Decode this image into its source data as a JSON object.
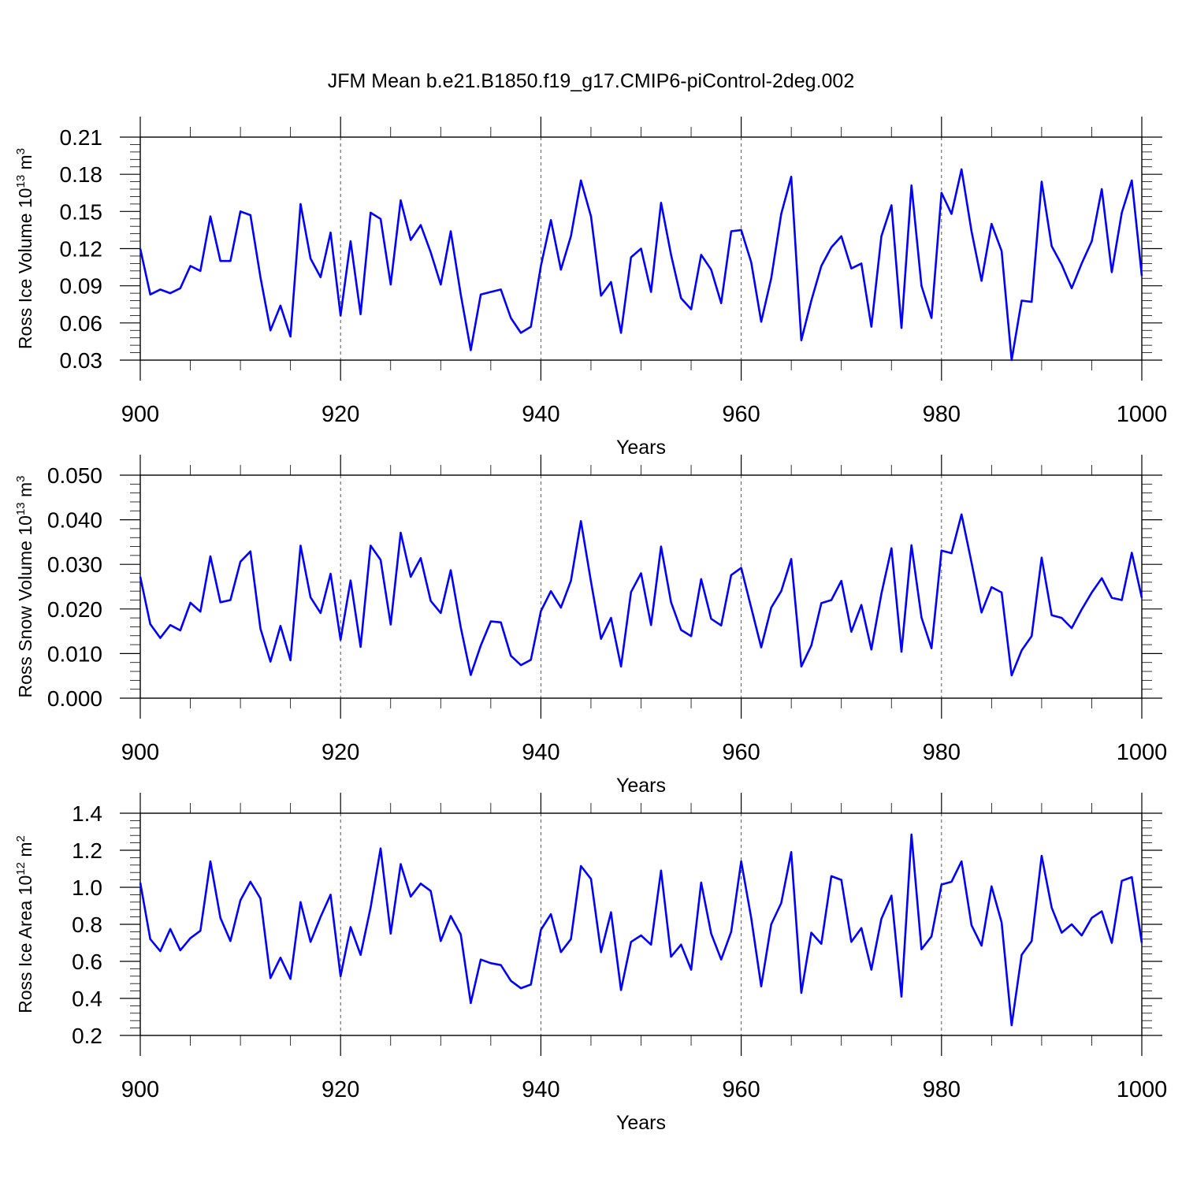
{
  "figure_title": "JFM Mean b.e21.B1850.f19_g17.CMIP6-piControl-2deg.002",
  "colors": {
    "line": "#0000ff",
    "axes": "#000000",
    "grid": "#555555",
    "background": "#ffffff"
  },
  "chart_data": [
    {
      "type": "line",
      "xlabel": "Years",
      "ylabel_main": "Ross Ice Volume 10",
      "ylabel_exp": "13",
      "ylabel_unit": " m",
      "ylabel_unit_exp": "3",
      "xlim": [
        900,
        1000
      ],
      "ylim": [
        0.03,
        0.21
      ],
      "xticks": [
        "900",
        "920",
        "940",
        "960",
        "980",
        "1000"
      ],
      "yticks": [
        "0.03",
        "0.06",
        "0.09",
        "0.12",
        "0.15",
        "0.18",
        "0.21"
      ],
      "grid": "vertical dashed at major x ticks",
      "x_start": 900,
      "values": [
        0.12,
        0.083,
        0.087,
        0.084,
        0.088,
        0.106,
        0.102,
        0.146,
        0.11,
        0.11,
        0.15,
        0.147,
        0.097,
        0.054,
        0.074,
        0.049,
        0.156,
        0.112,
        0.097,
        0.133,
        0.066,
        0.126,
        0.067,
        0.149,
        0.144,
        0.091,
        0.159,
        0.127,
        0.139,
        0.117,
        0.091,
        0.134,
        0.083,
        0.038,
        0.083,
        0.085,
        0.087,
        0.064,
        0.052,
        0.057,
        0.106,
        0.143,
        0.103,
        0.13,
        0.175,
        0.146,
        0.082,
        0.093,
        0.052,
        0.113,
        0.12,
        0.085,
        0.157,
        0.115,
        0.08,
        0.071,
        0.115,
        0.103,
        0.076,
        0.134,
        0.135,
        0.109,
        0.061,
        0.096,
        0.148,
        0.178,
        0.046,
        0.078,
        0.106,
        0.121,
        0.13,
        0.104,
        0.108,
        0.057,
        0.13,
        0.155,
        0.056,
        0.171,
        0.09,
        0.064,
        0.165,
        0.148,
        0.184,
        0.134,
        0.094,
        0.14,
        0.118,
        0.03,
        0.078,
        0.077,
        0.174,
        0.122,
        0.107,
        0.088,
        0.108,
        0.126,
        0.168,
        0.101,
        0.149,
        0.175,
        0.098
      ]
    },
    {
      "type": "line",
      "xlabel": "Years",
      "ylabel_main": "Ross Snow Volume 10",
      "ylabel_exp": "13",
      "ylabel_unit": " m",
      "ylabel_unit_exp": "3",
      "xlim": [
        900,
        1000
      ],
      "ylim": [
        0.0,
        0.05
      ],
      "xticks": [
        "900",
        "920",
        "940",
        "960",
        "980",
        "1000"
      ],
      "yticks": [
        "0.000",
        "0.010",
        "0.020",
        "0.030",
        "0.040",
        "0.050"
      ],
      "grid": "vertical dashed at major x ticks",
      "x_start": 900,
      "values": [
        0.0272,
        0.0166,
        0.0135,
        0.0164,
        0.0152,
        0.0214,
        0.0194,
        0.0318,
        0.0215,
        0.022,
        0.0306,
        0.0329,
        0.0156,
        0.0082,
        0.0162,
        0.0085,
        0.0342,
        0.0226,
        0.0191,
        0.0279,
        0.0131,
        0.0264,
        0.0115,
        0.0342,
        0.031,
        0.0165,
        0.0371,
        0.0272,
        0.0314,
        0.0218,
        0.0191,
        0.0287,
        0.0159,
        0.0052,
        0.0118,
        0.0172,
        0.017,
        0.0095,
        0.0074,
        0.0086,
        0.0195,
        0.024,
        0.0203,
        0.0263,
        0.0397,
        0.0261,
        0.0133,
        0.018,
        0.0071,
        0.0238,
        0.028,
        0.0164,
        0.034,
        0.0215,
        0.0153,
        0.0139,
        0.0267,
        0.0178,
        0.0163,
        0.0276,
        0.0292,
        0.0203,
        0.0114,
        0.0203,
        0.024,
        0.0312,
        0.0071,
        0.0118,
        0.0213,
        0.022,
        0.0263,
        0.0149,
        0.0209,
        0.0109,
        0.0234,
        0.0336,
        0.0104,
        0.0343,
        0.0181,
        0.0112,
        0.0331,
        0.0325,
        0.0412,
        0.0304,
        0.0192,
        0.0249,
        0.0237,
        0.0051,
        0.0107,
        0.0139,
        0.0315,
        0.0186,
        0.018,
        0.0157,
        0.0199,
        0.0237,
        0.0269,
        0.0225,
        0.022,
        0.0326,
        0.0225
      ]
    },
    {
      "type": "line",
      "xlabel": "Years",
      "ylabel_main": "Ross Ice Area 10",
      "ylabel_exp": "12",
      "ylabel_unit": " m",
      "ylabel_unit_exp": "2",
      "xlim": [
        900,
        1000
      ],
      "ylim": [
        0.2,
        1.4
      ],
      "xticks": [
        "900",
        "920",
        "940",
        "960",
        "980",
        "1000"
      ],
      "yticks": [
        "0.2",
        "0.4",
        "0.6",
        "0.8",
        "1.0",
        "1.2",
        "1.4"
      ],
      "grid": "vertical dashed at major x ticks",
      "x_start": 900,
      "values": [
        1.025,
        0.72,
        0.655,
        0.775,
        0.66,
        0.725,
        0.765,
        1.14,
        0.835,
        0.71,
        0.93,
        1.03,
        0.94,
        0.51,
        0.62,
        0.505,
        0.92,
        0.705,
        0.84,
        0.96,
        0.52,
        0.785,
        0.635,
        0.89,
        1.21,
        0.75,
        1.125,
        0.95,
        1.02,
        0.98,
        0.71,
        0.845,
        0.745,
        0.375,
        0.61,
        0.59,
        0.58,
        0.495,
        0.455,
        0.475,
        0.77,
        0.855,
        0.65,
        0.72,
        1.115,
        1.045,
        0.65,
        0.865,
        0.445,
        0.705,
        0.74,
        0.69,
        1.09,
        0.625,
        0.69,
        0.555,
        1.025,
        0.75,
        0.61,
        0.76,
        1.14,
        0.835,
        0.465,
        0.8,
        0.915,
        1.19,
        0.43,
        0.755,
        0.695,
        1.06,
        1.04,
        0.705,
        0.78,
        0.555,
        0.83,
        0.955,
        0.41,
        1.285,
        0.665,
        0.735,
        1.015,
        1.03,
        1.14,
        0.795,
        0.685,
        1.005,
        0.81,
        0.255,
        0.635,
        0.71,
        1.17,
        0.89,
        0.755,
        0.8,
        0.74,
        0.835,
        0.87,
        0.7,
        1.035,
        1.055,
        0.7
      ]
    }
  ]
}
